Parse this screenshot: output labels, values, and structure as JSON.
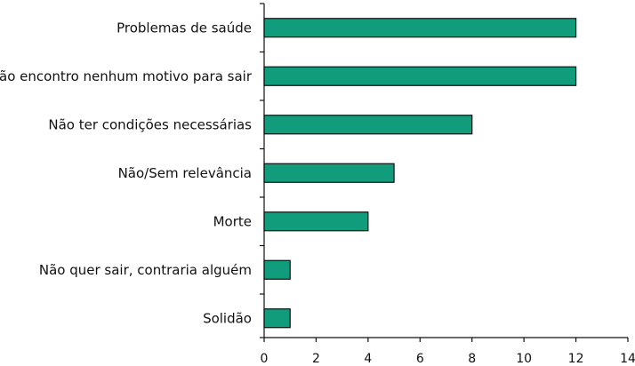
{
  "chart_data": {
    "type": "bar",
    "orientation": "horizontal",
    "title": "",
    "xlabel": "",
    "ylabel": "",
    "categories": [
      "Problemas de saúde",
      "Não encontro nenhum motivo para sair",
      "Não ter condições necessárias",
      "Não/Sem relevância",
      "Morte",
      "Não quer sair, contraria alguém",
      "Solidão"
    ],
    "values": [
      12,
      12,
      8,
      5,
      4,
      1,
      1
    ],
    "xlim": [
      0,
      14
    ],
    "xticks": [
      0,
      2,
      4,
      6,
      8,
      10,
      12,
      14
    ],
    "grid": false,
    "legend": "none",
    "bar_color": "#119c7c",
    "edge_color": "#111111"
  }
}
